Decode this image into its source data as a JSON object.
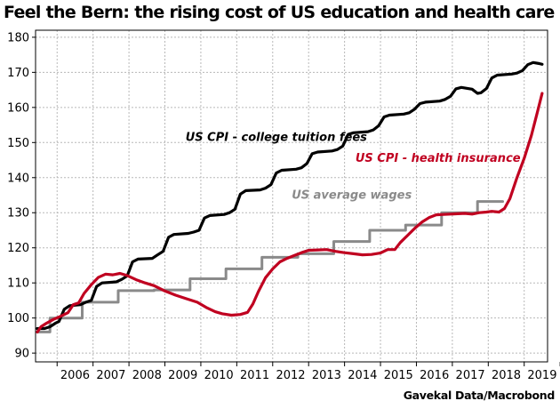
{
  "title": "Feel the Bern: the rising cost of US education and health care",
  "source": "Gavekal Data/Macrobond",
  "chart_data": {
    "type": "line",
    "title": "Feel the Bern: the rising cost of US education and health care",
    "xlabel": "",
    "ylabel": "",
    "xlim": [
      2005.4,
      2019.65
    ],
    "ylim": [
      87.5,
      182
    ],
    "x_ticks": [
      "2006",
      "2007",
      "2008",
      "2009",
      "2010",
      "2011",
      "2012",
      "2013",
      "2014",
      "2015",
      "2016",
      "2017",
      "2018",
      "2019"
    ],
    "y_ticks": [
      90,
      100,
      110,
      120,
      130,
      140,
      150,
      160,
      170,
      180
    ],
    "grid": true,
    "legend": "none",
    "series": [
      {
        "name": "US CPI - college tuition fees",
        "color": "#000000",
        "step": false,
        "points": [
          [
            2005.45,
            97
          ],
          [
            2005.65,
            97
          ],
          [
            2005.8,
            97.5
          ],
          [
            2005.95,
            98.5
          ],
          [
            2006.05,
            99
          ],
          [
            2006.2,
            102.5
          ],
          [
            2006.35,
            103.5
          ],
          [
            2006.65,
            103.8
          ],
          [
            2006.8,
            104.5
          ],
          [
            2006.95,
            105
          ],
          [
            2007.1,
            109
          ],
          [
            2007.25,
            110
          ],
          [
            2007.65,
            110.3
          ],
          [
            2007.8,
            111
          ],
          [
            2007.95,
            112
          ],
          [
            2008.1,
            116
          ],
          [
            2008.25,
            116.8
          ],
          [
            2008.65,
            117
          ],
          [
            2008.8,
            118
          ],
          [
            2008.95,
            119
          ],
          [
            2009.1,
            123
          ],
          [
            2009.25,
            123.8
          ],
          [
            2009.65,
            124.1
          ],
          [
            2009.8,
            124.5
          ],
          [
            2009.95,
            125
          ],
          [
            2010.1,
            128.5
          ],
          [
            2010.25,
            129.2
          ],
          [
            2010.65,
            129.5
          ],
          [
            2010.8,
            130
          ],
          [
            2010.95,
            131
          ],
          [
            2011.1,
            135.3
          ],
          [
            2011.25,
            136.3
          ],
          [
            2011.65,
            136.5
          ],
          [
            2011.8,
            137
          ],
          [
            2011.95,
            138
          ],
          [
            2012.1,
            141.3
          ],
          [
            2012.25,
            142.1
          ],
          [
            2012.65,
            142.4
          ],
          [
            2012.8,
            142.8
          ],
          [
            2012.95,
            144
          ],
          [
            2013.1,
            146.8
          ],
          [
            2013.25,
            147.3
          ],
          [
            2013.65,
            147.6
          ],
          [
            2013.8,
            148
          ],
          [
            2013.95,
            149
          ],
          [
            2014.1,
            152.3
          ],
          [
            2014.25,
            152.8
          ],
          [
            2014.65,
            153.1
          ],
          [
            2014.8,
            153.6
          ],
          [
            2014.95,
            154.8
          ],
          [
            2015.1,
            157.3
          ],
          [
            2015.25,
            157.8
          ],
          [
            2015.65,
            158.1
          ],
          [
            2015.8,
            158.5
          ],
          [
            2015.95,
            159.5
          ],
          [
            2016.1,
            161.1
          ],
          [
            2016.25,
            161.5
          ],
          [
            2016.65,
            161.8
          ],
          [
            2016.8,
            162.3
          ],
          [
            2016.95,
            163.2
          ],
          [
            2017.1,
            165.3
          ],
          [
            2017.25,
            165.7
          ],
          [
            2017.55,
            165.2
          ],
          [
            2017.7,
            164
          ],
          [
            2017.8,
            164.2
          ],
          [
            2017.95,
            165.4
          ],
          [
            2018.1,
            168.4
          ],
          [
            2018.25,
            169.2
          ],
          [
            2018.65,
            169.5
          ],
          [
            2018.8,
            169.8
          ],
          [
            2018.95,
            170.5
          ],
          [
            2019.1,
            172.2
          ],
          [
            2019.25,
            172.8
          ],
          [
            2019.42,
            172.5
          ],
          [
            2019.5,
            172.3
          ]
        ]
      },
      {
        "name": "US CPI - health insurance",
        "color": "#c00020",
        "step": false,
        "points": [
          [
            2005.45,
            96
          ],
          [
            2005.55,
            97.5
          ],
          [
            2005.7,
            98.5
          ],
          [
            2005.9,
            99.6
          ],
          [
            2006.1,
            100.5
          ],
          [
            2006.3,
            101.5
          ],
          [
            2006.45,
            103.8
          ],
          [
            2006.6,
            104.3
          ],
          [
            2006.75,
            107
          ],
          [
            2006.95,
            109.5
          ],
          [
            2007.15,
            111.6
          ],
          [
            2007.35,
            112.5
          ],
          [
            2007.55,
            112.3
          ],
          [
            2007.75,
            112.7
          ],
          [
            2007.95,
            112.1
          ],
          [
            2008.2,
            110.9
          ],
          [
            2008.45,
            110
          ],
          [
            2008.7,
            109.2
          ],
          [
            2009.0,
            107.7
          ],
          [
            2009.3,
            106.5
          ],
          [
            2009.6,
            105.5
          ],
          [
            2009.9,
            104.5
          ],
          [
            2010.15,
            103
          ],
          [
            2010.4,
            101.8
          ],
          [
            2010.6,
            101.2
          ],
          [
            2010.85,
            100.8
          ],
          [
            2011.1,
            101
          ],
          [
            2011.3,
            101.6
          ],
          [
            2011.45,
            104
          ],
          [
            2011.6,
            107.5
          ],
          [
            2011.8,
            111.5
          ],
          [
            2012.0,
            114
          ],
          [
            2012.2,
            116
          ],
          [
            2012.4,
            117
          ],
          [
            2012.6,
            117.8
          ],
          [
            2012.8,
            118.6
          ],
          [
            2013.0,
            119.3
          ],
          [
            2013.25,
            119.4
          ],
          [
            2013.5,
            119.5
          ],
          [
            2013.75,
            119
          ],
          [
            2014.0,
            118.6
          ],
          [
            2014.25,
            118.3
          ],
          [
            2014.5,
            118
          ],
          [
            2014.75,
            118.1
          ],
          [
            2015.0,
            118.5
          ],
          [
            2015.2,
            119.5
          ],
          [
            2015.4,
            119.5
          ],
          [
            2015.55,
            121.5
          ],
          [
            2015.75,
            123.5
          ],
          [
            2015.95,
            125.5
          ],
          [
            2016.15,
            127.3
          ],
          [
            2016.35,
            128.6
          ],
          [
            2016.55,
            129.4
          ],
          [
            2016.75,
            129.5
          ],
          [
            2016.95,
            129.6
          ],
          [
            2017.15,
            129.7
          ],
          [
            2017.35,
            129.8
          ],
          [
            2017.55,
            129.6
          ],
          [
            2017.75,
            130
          ],
          [
            2017.95,
            130.2
          ],
          [
            2018.1,
            130.4
          ],
          [
            2018.3,
            130.2
          ],
          [
            2018.45,
            131.2
          ],
          [
            2018.6,
            134
          ],
          [
            2018.8,
            140
          ],
          [
            2019.0,
            145.5
          ],
          [
            2019.2,
            152
          ],
          [
            2019.35,
            158
          ],
          [
            2019.5,
            164
          ]
        ]
      },
      {
        "name": "US average wages",
        "color": "#8a8a8a",
        "step": true,
        "points": [
          [
            2005.45,
            96
          ],
          [
            2005.8,
            96
          ],
          [
            2005.8,
            100
          ],
          [
            2006.7,
            100
          ],
          [
            2006.7,
            104.5
          ],
          [
            2007.7,
            104.5
          ],
          [
            2007.7,
            107.8
          ],
          [
            2008.7,
            107.8
          ],
          [
            2008.7,
            108
          ],
          [
            2009.7,
            108
          ],
          [
            2009.7,
            111.2
          ],
          [
            2010.7,
            111.2
          ],
          [
            2010.7,
            114
          ],
          [
            2011.7,
            114
          ],
          [
            2011.7,
            117.3
          ],
          [
            2012.7,
            117.3
          ],
          [
            2012.7,
            118.3
          ],
          [
            2013.7,
            118.3
          ],
          [
            2013.7,
            121.8
          ],
          [
            2014.7,
            121.8
          ],
          [
            2014.7,
            125
          ],
          [
            2015.7,
            125
          ],
          [
            2015.7,
            126.5
          ],
          [
            2016.7,
            126.5
          ],
          [
            2016.7,
            130
          ],
          [
            2017.7,
            130
          ],
          [
            2017.7,
            133.2
          ],
          [
            2018.4,
            133.2
          ]
        ]
      }
    ],
    "annotations": [
      {
        "text": "US CPI - college tuition fees",
        "color": "#000000"
      },
      {
        "text": "US CPI - health insurance",
        "color": "#c00020"
      },
      {
        "text": "US average wages",
        "color": "#8a8a8a"
      }
    ]
  }
}
